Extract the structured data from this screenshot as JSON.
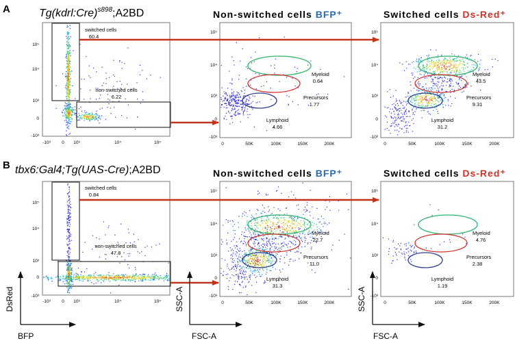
{
  "colors": {
    "arrow": "#c0341d",
    "myeloid_gate": "#2db36b",
    "precursor_gate": "#d0312d",
    "lymphoid_gate": "#2a3f8f",
    "bfp_text": "#2a6ab0",
    "dsred_text": "#d0312d"
  },
  "figure": {
    "axis_labels": {
      "dsred": "DsRed",
      "bfp": "BFP",
      "ssc": "SSC-A",
      "fsc": "FSC-A"
    },
    "log_ticks": [
      "-10³",
      "0",
      "10³",
      "10⁴",
      "10⁵"
    ],
    "scatter_y_ticks": [
      "-10³",
      "0",
      "10³",
      "10⁴",
      "10⁵"
    ],
    "scatter_x_ticks": [
      "0",
      "50K",
      "100K",
      "150K",
      "200K"
    ],
    "gate_names": {
      "switched": "switched cells",
      "nonswitched": "non-switched cells",
      "myeloid": "Myeloid",
      "precursors": "Precursors",
      "lymphoid": "Lymphoid"
    },
    "titles": {
      "nonswitched": "Non-switched cells",
      "switched": "Switched cells",
      "bfp": "BFP⁺",
      "dsred": "Ds-Red⁺"
    }
  },
  "chart_data": [
    {
      "panel": "A",
      "type": "scatter",
      "title_main": "Tg(kdrl:Cre)",
      "title_sup": "s898",
      "title_rest": ";A2BD",
      "xlabel": "BFP",
      "ylabel": "DsRed",
      "scale": "biexponential",
      "gates": [
        {
          "name": "switched cells",
          "percent": "60.4"
        },
        {
          "name": "non-switched cells",
          "percent": "6.22"
        }
      ]
    },
    {
      "panel": "A",
      "type": "scatter",
      "title": "Non-switched cells BFP⁺",
      "xlabel": "FSC-A",
      "ylabel": "SSC-A",
      "xlim": [
        0,
        250000
      ],
      "gates": [
        {
          "name": "Myeloid",
          "percent": "0.64"
        },
        {
          "name": "Precursors",
          "percent": "1.77"
        },
        {
          "name": "Lymphoid",
          "percent": "4.66"
        }
      ]
    },
    {
      "panel": "A",
      "type": "scatter",
      "title": "Switched cells Ds-Red⁺",
      "xlabel": "FSC-A",
      "ylabel": "SSC-A",
      "xlim": [
        0,
        250000
      ],
      "gates": [
        {
          "name": "Myeloid",
          "percent": "43.5"
        },
        {
          "name": "Precursors",
          "percent": "9.31"
        },
        {
          "name": "Lymphoid",
          "percent": "31.2"
        }
      ]
    },
    {
      "panel": "B",
      "type": "scatter",
      "title_main": "tbx6:Gal4;Tg(UAS-Cre)",
      "title_sup": "",
      "title_rest": ";A2BD",
      "xlabel": "BFP",
      "ylabel": "DsRed",
      "scale": "biexponential",
      "gates": [
        {
          "name": "switched cells",
          "percent": "0.84"
        },
        {
          "name": "non-switched cells",
          "percent": "47.8"
        }
      ]
    },
    {
      "panel": "B",
      "type": "scatter",
      "title": "Non-switched cells BFP⁺",
      "xlabel": "FSC-A",
      "ylabel": "SSC-A",
      "xlim": [
        0,
        250000
      ],
      "gates": [
        {
          "name": "Myeloid",
          "percent": "22.7"
        },
        {
          "name": "Precursors",
          "percent": "11.0"
        },
        {
          "name": "Lymphoid",
          "percent": "31.3"
        }
      ]
    },
    {
      "panel": "B",
      "type": "scatter",
      "title": "Switched cells Ds-Red⁺",
      "xlabel": "FSC-A",
      "ylabel": "SSC-A",
      "xlim": [
        0,
        250000
      ],
      "gates": [
        {
          "name": "Myeloid",
          "percent": "4.76"
        },
        {
          "name": "Precursors",
          "percent": "2.38"
        },
        {
          "name": "Lymphoid",
          "percent": "1.19"
        }
      ]
    }
  ]
}
